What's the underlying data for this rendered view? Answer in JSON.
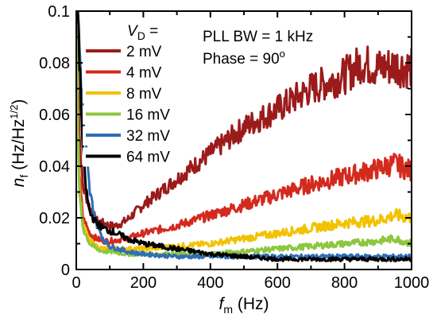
{
  "chart_data": {
    "type": "line",
    "xlabel_main": "f",
    "xlabel_sub": "m",
    "xlabel_units": " (Hz)",
    "ylabel_main": "n",
    "ylabel_sub": "f",
    "ylabel_units_a": " (Hz/Hz",
    "ylabel_units_sup": "1/2",
    "ylabel_units_b": ")",
    "xlim": [
      0,
      1000
    ],
    "ylim": [
      0,
      0.1
    ],
    "x_ticks": [
      "0",
      "200",
      "400",
      "600",
      "800",
      "1000"
    ],
    "y_ticks": [
      "0",
      "0.02",
      "0.04",
      "0.06",
      "0.08",
      "0.1"
    ],
    "annotation_line1": "PLL BW = 1 kHz",
    "annotation_line2_a": "Phase = 90",
    "annotation_line2_sup": "o",
    "legend_header_main": "V",
    "legend_header_sub": "D",
    "legend_header_tail": " =",
    "series": [
      {
        "name": "2 mV",
        "color": "#9b1b1b",
        "x": [
          0,
          5,
          10,
          20,
          40,
          60,
          80,
          100,
          120,
          150,
          200,
          300,
          400,
          500,
          600,
          700,
          800,
          850,
          900,
          950,
          1000
        ],
        "y": [
          0.1,
          0.075,
          0.05,
          0.032,
          0.024,
          0.019,
          0.018,
          0.017,
          0.017,
          0.019,
          0.025,
          0.035,
          0.045,
          0.055,
          0.062,
          0.07,
          0.075,
          0.08,
          0.078,
          0.079,
          0.078
        ]
      },
      {
        "name": "4 mV",
        "color": "#d42a1e",
        "x": [
          0,
          5,
          10,
          20,
          40,
          60,
          80,
          100,
          150,
          200,
          300,
          400,
          500,
          600,
          700,
          800,
          900,
          950,
          1000
        ],
        "y": [
          0.1,
          0.06,
          0.035,
          0.02,
          0.014,
          0.012,
          0.011,
          0.011,
          0.012,
          0.014,
          0.017,
          0.021,
          0.025,
          0.029,
          0.033,
          0.036,
          0.039,
          0.041,
          0.038
        ]
      },
      {
        "name": "8 mV",
        "color": "#f2c200",
        "x": [
          0,
          5,
          10,
          20,
          40,
          60,
          80,
          100,
          150,
          200,
          300,
          400,
          500,
          600,
          700,
          800,
          900,
          950,
          1000
        ],
        "y": [
          0.1,
          0.055,
          0.03,
          0.017,
          0.011,
          0.009,
          0.008,
          0.008,
          0.008,
          0.008,
          0.009,
          0.01,
          0.012,
          0.014,
          0.016,
          0.018,
          0.019,
          0.021,
          0.02
        ]
      },
      {
        "name": "16 mV",
        "color": "#8dc63f",
        "x": [
          0,
          5,
          10,
          20,
          40,
          60,
          80,
          100,
          150,
          200,
          300,
          400,
          500,
          600,
          700,
          800,
          900,
          950,
          1000
        ],
        "y": [
          0.1,
          0.05,
          0.028,
          0.016,
          0.01,
          0.008,
          0.007,
          0.007,
          0.006,
          0.006,
          0.006,
          0.006,
          0.007,
          0.008,
          0.009,
          0.01,
          0.011,
          0.012,
          0.01
        ]
      },
      {
        "name": "32 mV",
        "color": "#2f6db5",
        "x": [
          0,
          5,
          10,
          20,
          40,
          60,
          80,
          100,
          150,
          200,
          300,
          400,
          500,
          600,
          700,
          800,
          900,
          1000
        ],
        "y": [
          0.1,
          0.1,
          0.085,
          0.06,
          0.03,
          0.018,
          0.012,
          0.009,
          0.007,
          0.006,
          0.005,
          0.005,
          0.005,
          0.005,
          0.005,
          0.005,
          0.005,
          0.005
        ]
      },
      {
        "name": "64 mV",
        "color": "#000000",
        "x": [
          0,
          5,
          10,
          20,
          30,
          40,
          60,
          80,
          100,
          120,
          150,
          200,
          250,
          300,
          400,
          500,
          600,
          700,
          800,
          900,
          1000
        ],
        "y": [
          0.1,
          0.1,
          0.08,
          0.045,
          0.03,
          0.022,
          0.018,
          0.016,
          0.015,
          0.014,
          0.012,
          0.01,
          0.009,
          0.008,
          0.006,
          0.005,
          0.004,
          0.004,
          0.004,
          0.004,
          0.004
        ]
      }
    ]
  }
}
